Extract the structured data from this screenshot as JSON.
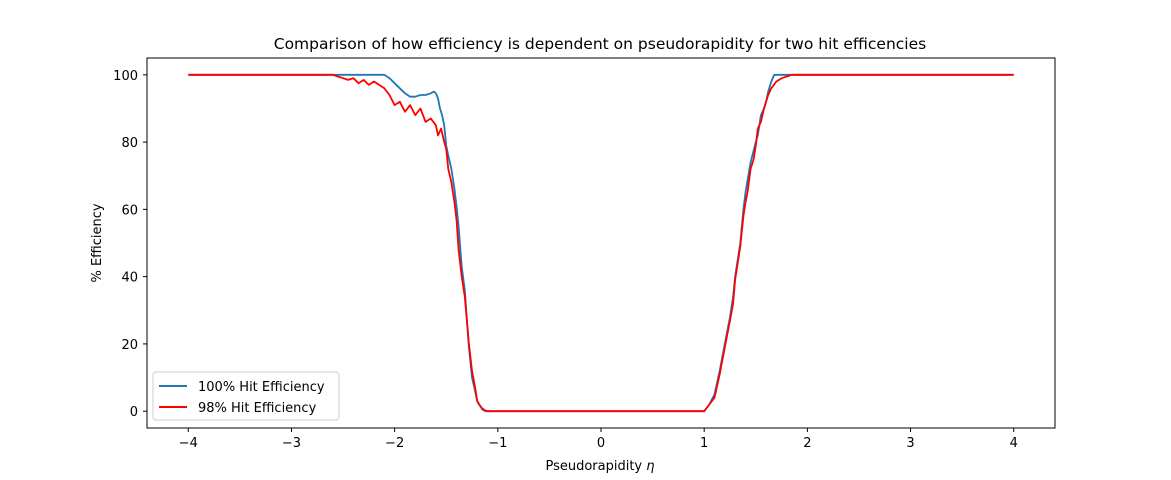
{
  "chart_data": {
    "type": "line",
    "title": "Comparison of how efficiency is dependent on pseudorapidity for two hit efficencies",
    "xlabel_text": "Pseudorapidity ",
    "xlabel_symbol": "η",
    "ylabel": "% Efficiency",
    "xlim": [
      -4.4,
      4.4
    ],
    "ylim": [
      -5,
      105
    ],
    "xticks": [
      -4,
      -3,
      -2,
      -1,
      0,
      1,
      2,
      3,
      4
    ],
    "xtick_labels": [
      "−4",
      "−3",
      "−2",
      "−1",
      "0",
      "1",
      "2",
      "3",
      "4"
    ],
    "yticks": [
      0,
      20,
      40,
      60,
      80,
      100
    ],
    "ytick_labels": [
      "0",
      "20",
      "40",
      "60",
      "80",
      "100"
    ],
    "grid": false,
    "legend_position": "lower-left",
    "series": [
      {
        "name": "100% Hit Efficiency",
        "color": "#1f77b4",
        "x": [
          -4.0,
          -2.6,
          -2.1,
          -2.05,
          -2.0,
          -1.95,
          -1.9,
          -1.85,
          -1.8,
          -1.75,
          -1.7,
          -1.65,
          -1.62,
          -1.6,
          -1.58,
          -1.56,
          -1.54,
          -1.52,
          -1.5,
          -1.48,
          -1.45,
          -1.42,
          -1.4,
          -1.38,
          -1.35,
          -1.32,
          -1.3,
          -1.28,
          -1.25,
          -1.22,
          -1.2,
          -1.18,
          -1.15,
          -1.12,
          -1.1,
          -1.05,
          -1.0,
          1.0,
          1.05,
          1.1,
          1.15,
          1.2,
          1.25,
          1.28,
          1.3,
          1.35,
          1.38,
          1.4,
          1.45,
          1.5,
          1.52,
          1.55,
          1.58,
          1.6,
          1.62,
          1.65,
          1.68,
          1.7,
          1.75,
          1.8,
          1.85,
          1.9,
          2.0,
          4.0
        ],
        "y": [
          100,
          100,
          100,
          99,
          97.5,
          96,
          94.5,
          93.5,
          93.5,
          94,
          94,
          94.5,
          95,
          94.5,
          93,
          90,
          88,
          85,
          79,
          76,
          72,
          66,
          61,
          55,
          43,
          36,
          27,
          19,
          10,
          6,
          3,
          2,
          0.5,
          0,
          0,
          0,
          0,
          0,
          2,
          5,
          12,
          20,
          28,
          34,
          40,
          50,
          60,
          65,
          74,
          80,
          82,
          88,
          90,
          92,
          95,
          98,
          100,
          100,
          100,
          100,
          100,
          100,
          100,
          100
        ]
      },
      {
        "name": "98% Hit Efficiency",
        "color": "#ff0000",
        "x": [
          -4.0,
          -2.6,
          -2.55,
          -2.5,
          -2.45,
          -2.4,
          -2.35,
          -2.3,
          -2.25,
          -2.2,
          -2.15,
          -2.1,
          -2.05,
          -2.0,
          -1.95,
          -1.9,
          -1.85,
          -1.8,
          -1.75,
          -1.7,
          -1.65,
          -1.6,
          -1.58,
          -1.55,
          -1.52,
          -1.5,
          -1.48,
          -1.45,
          -1.42,
          -1.4,
          -1.38,
          -1.35,
          -1.32,
          -1.3,
          -1.28,
          -1.25,
          -1.22,
          -1.2,
          -1.18,
          -1.15,
          -1.12,
          -1.1,
          -1.05,
          -1.0,
          1.0,
          1.05,
          1.1,
          1.15,
          1.2,
          1.25,
          1.28,
          1.3,
          1.35,
          1.38,
          1.4,
          1.42,
          1.45,
          1.48,
          1.5,
          1.52,
          1.55,
          1.58,
          1.6,
          1.62,
          1.65,
          1.7,
          1.75,
          1.8,
          1.85,
          1.9,
          2.0,
          4.0
        ],
        "y": [
          100,
          100,
          99.5,
          99,
          98.5,
          99,
          97.5,
          98.5,
          97,
          98,
          97,
          96,
          94,
          91,
          92,
          89,
          91,
          88,
          90,
          86,
          87,
          85,
          82,
          84,
          80,
          78,
          72,
          68,
          62,
          57,
          48,
          40,
          34,
          27,
          20,
          12,
          7,
          3,
          2,
          0.8,
          0.2,
          0,
          0,
          0,
          0,
          2,
          4,
          11,
          19,
          27,
          32,
          39,
          49,
          58,
          62,
          65,
          72,
          75,
          79,
          84,
          86,
          90,
          92,
          94,
          96,
          98,
          99,
          99.5,
          100,
          100,
          100,
          100
        ]
      }
    ]
  }
}
